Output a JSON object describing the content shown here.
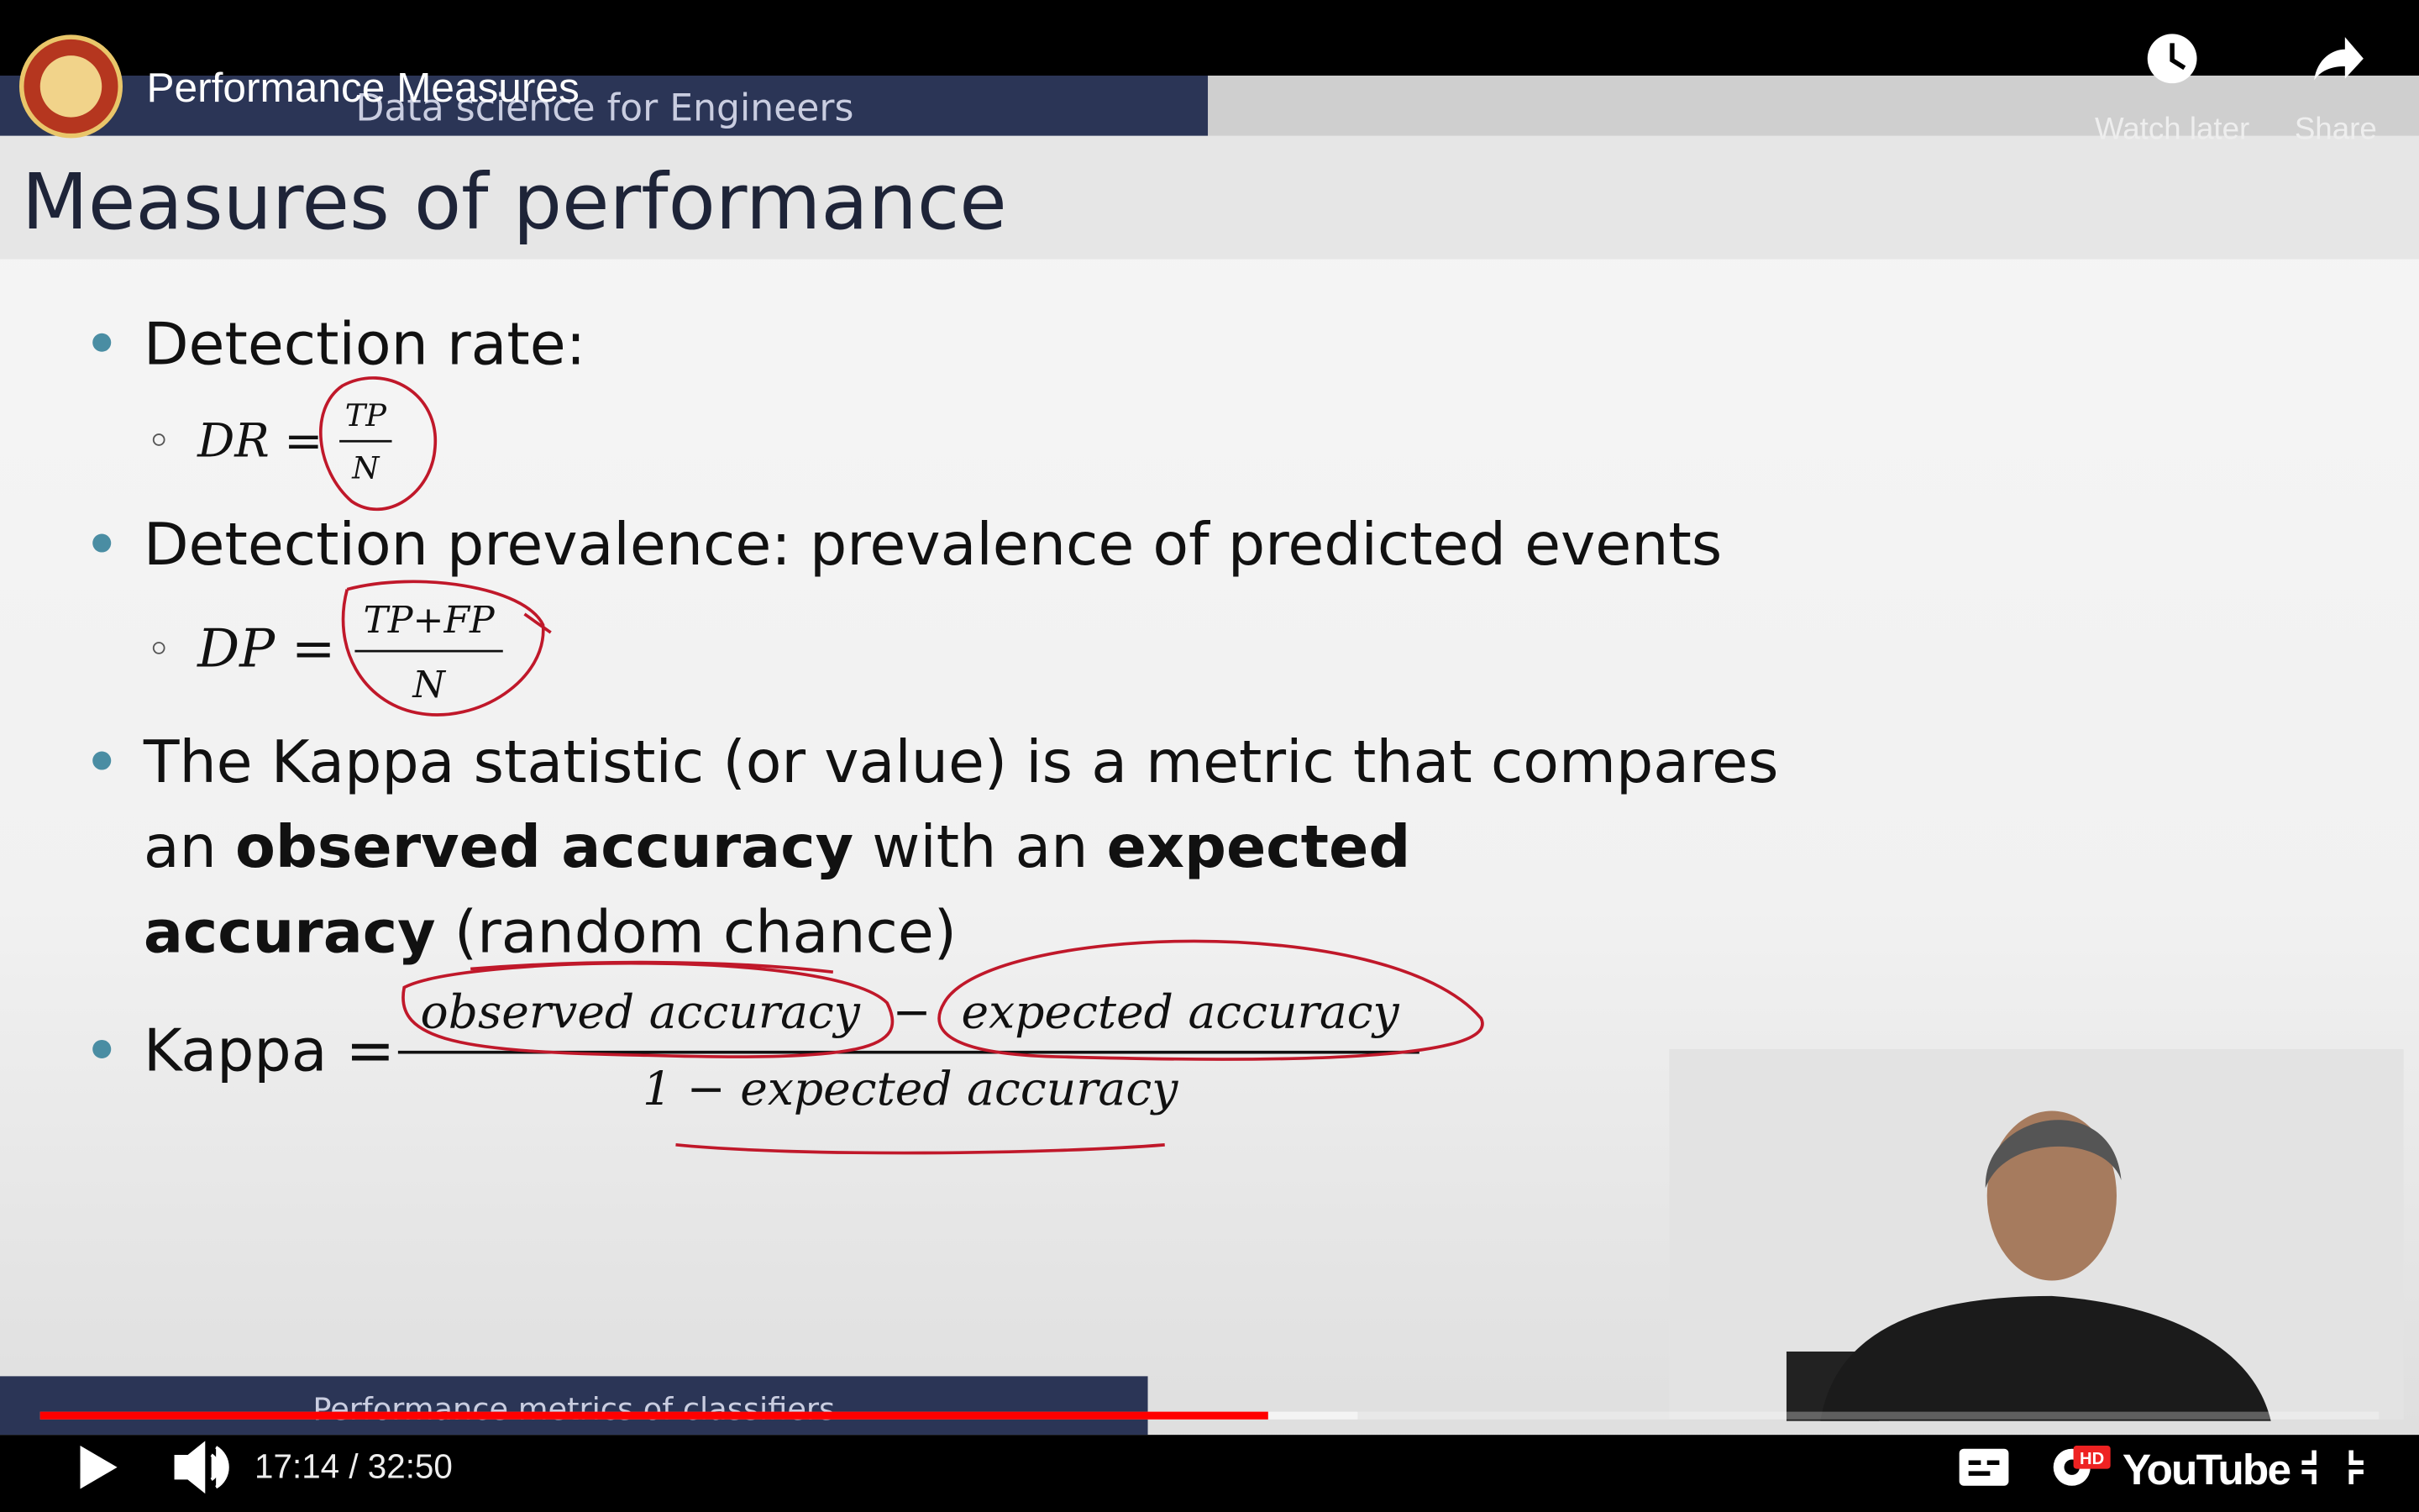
{
  "video": {
    "title": "Performance Measures",
    "time": "17:14 / 32:50",
    "watch_later": "Watch later",
    "share": "Share",
    "brand": "YouTube",
    "quality": "HD"
  },
  "slide": {
    "course": "Data science for Engineers",
    "heading": "Measures of performance",
    "bullet1": "Detection rate:",
    "dr": {
      "lhs": "DR =",
      "numerator": "TP",
      "denominator": "N"
    },
    "bullet2": "Detection prevalence:  prevalence of predicted events",
    "dp": {
      "lhs": "DP =",
      "numerator": "TP+FP",
      "denominator": "N"
    },
    "kappa_text": [
      [
        {
          "text": "The Kappa statistic (or value) is a metric that compares",
          "bold": false
        }
      ],
      [
        {
          "text": "an ",
          "bold": false
        },
        {
          "text": "observed accuracy",
          "bold": true
        },
        {
          "text": " with an ",
          "bold": false
        },
        {
          "text": "expected",
          "bold": true
        }
      ],
      [
        {
          "text": "accuracy",
          "bold": true
        },
        {
          "text": " (random chance)",
          "bold": false
        }
      ]
    ],
    "kappa": {
      "lhs": "Kappa =",
      "numerator_left": "observed accuracy",
      "minus": "−",
      "numerator_right": "expected accuracy",
      "denominator": "1 − expected accuracy"
    },
    "footer": "Performance metrics of classifiers"
  }
}
